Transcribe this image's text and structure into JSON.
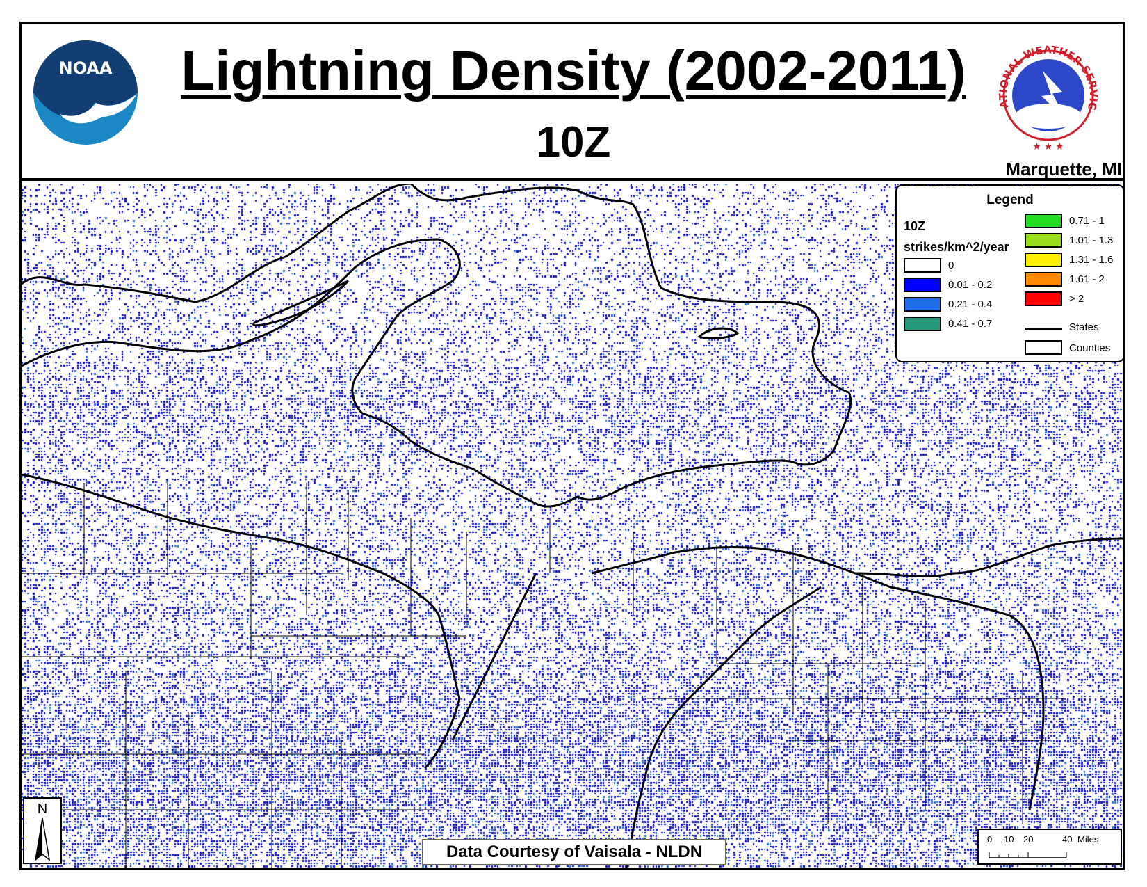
{
  "header": {
    "title": "Lightning Density (2002-2011)",
    "subtitle": "10Z",
    "office": "Marquette, MI",
    "logos": {
      "left": {
        "name": "noaa-logo",
        "text": "NOAA"
      },
      "right": {
        "name": "nws-logo",
        "text": "NATIONAL WEATHER SERVICE"
      }
    }
  },
  "legend": {
    "title": "Legend",
    "time": "10Z",
    "units": "strikes/km^2/year",
    "classes": [
      {
        "label": "0",
        "color": "#ffffff"
      },
      {
        "label": "0.01 - 0.2",
        "color": "#0000ff"
      },
      {
        "label": "0.21 - 0.4",
        "color": "#1e6fe8"
      },
      {
        "label": "0.41 - 0.7",
        "color": "#239a7a"
      },
      {
        "label": "0.71 - 1",
        "color": "#22dd22"
      },
      {
        "label": "1.01 - 1.3",
        "color": "#99e01c"
      },
      {
        "label": "1.31 - 1.6",
        "color": "#ffef00"
      },
      {
        "label": "1.61 - 2",
        "color": "#ff8a00"
      },
      {
        "label": "> 2",
        "color": "#ff0000"
      }
    ],
    "states_label": "States",
    "counties_label": "Counties"
  },
  "map": {
    "credit": "Data Courtesy of Vaisala - NLDN",
    "north_label": "N",
    "scale": {
      "ticks": [
        "0",
        "10",
        "20",
        "40"
      ],
      "unit_label": "Miles"
    }
  },
  "colors": {
    "primary_density": "#0000ff",
    "secondary_density": "#1e6fe8",
    "tertiary_density": "#239a7a"
  }
}
